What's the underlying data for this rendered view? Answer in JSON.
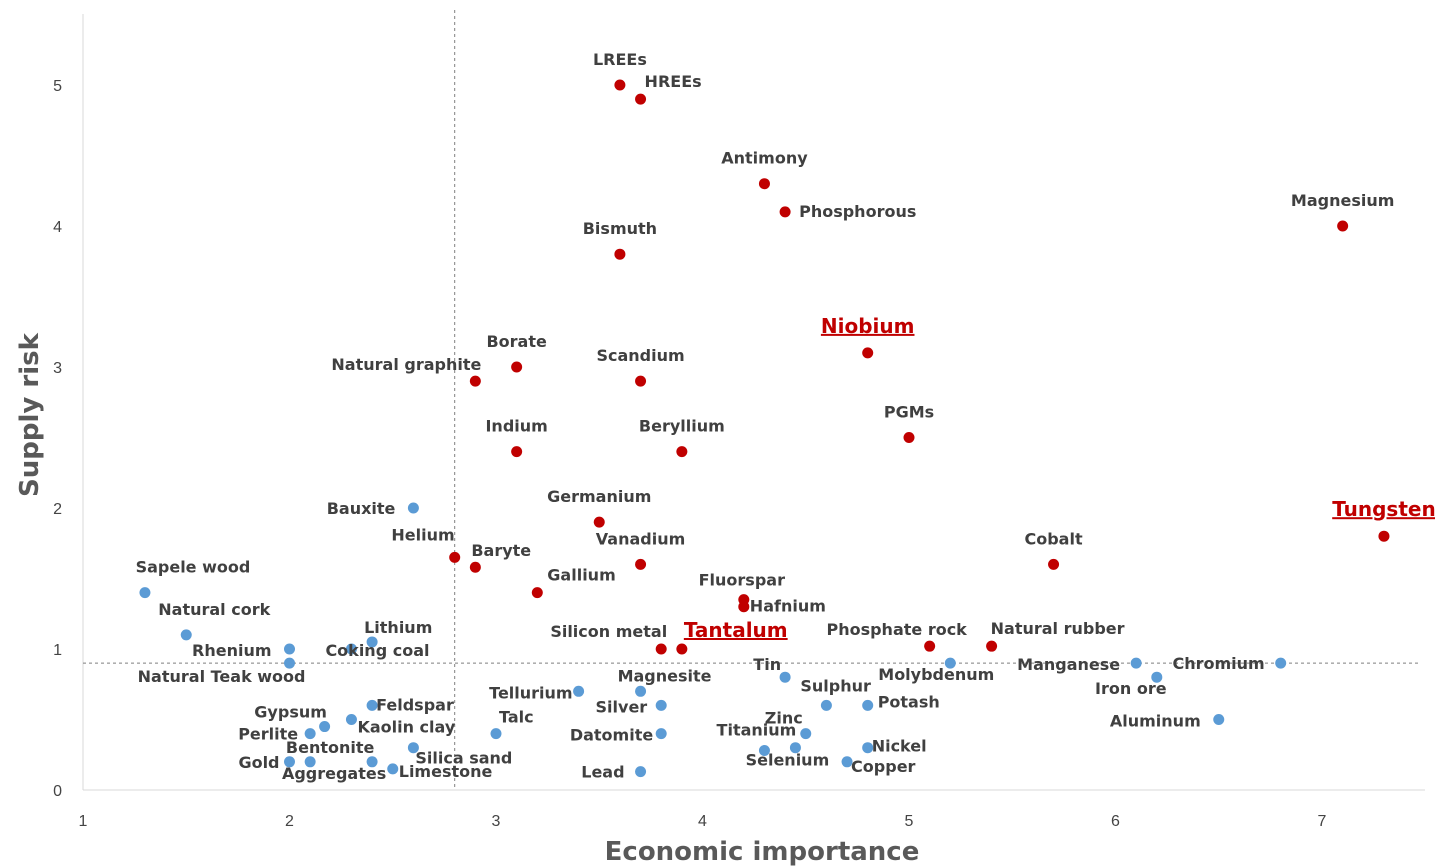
{
  "chart_data": {
    "type": "scatter",
    "xlabel": "Economic importance",
    "ylabel": "Supply risk",
    "xlim": [
      1,
      7.5
    ],
    "ylim": [
      0,
      5.5
    ],
    "xticks": [
      "1",
      "2",
      "3",
      "4",
      "5",
      "6",
      "7"
    ],
    "yticks": [
      "0",
      "1",
      "2",
      "3",
      "4",
      "5"
    ],
    "threshold_x": 2.8,
    "threshold_y": 0.9,
    "colors": {
      "critical": "#c00000",
      "non_critical": "#5b9bd5",
      "highlight_text": "#c00000"
    },
    "series": [
      {
        "group": "critical",
        "points": [
          {
            "name": "LREEs",
            "x": 3.6,
            "y": 5.0
          },
          {
            "name": "HREEs",
            "x": 3.7,
            "y": 4.9
          },
          {
            "name": "Antimony",
            "x": 4.3,
            "y": 4.3
          },
          {
            "name": "Phosphorous",
            "x": 4.4,
            "y": 4.1
          },
          {
            "name": "Magnesium",
            "x": 7.1,
            "y": 4.0
          },
          {
            "name": "Bismuth",
            "x": 3.6,
            "y": 3.8
          },
          {
            "name": "Niobium",
            "x": 4.8,
            "y": 3.1,
            "highlight": true
          },
          {
            "name": "Borate",
            "x": 3.1,
            "y": 3.0
          },
          {
            "name": "Natural graphite",
            "x": 2.9,
            "y": 2.9
          },
          {
            "name": "Scandium",
            "x": 3.7,
            "y": 2.9
          },
          {
            "name": "PGMs",
            "x": 5.0,
            "y": 2.5
          },
          {
            "name": "Indium",
            "x": 3.1,
            "y": 2.4
          },
          {
            "name": "Beryllium",
            "x": 3.9,
            "y": 2.4
          },
          {
            "name": "Germanium",
            "x": 3.5,
            "y": 1.9
          },
          {
            "name": "Tungsten",
            "x": 7.3,
            "y": 1.8,
            "highlight": true
          },
          {
            "name": "Helium",
            "x": 2.8,
            "y": 1.65
          },
          {
            "name": "Baryte",
            "x": 2.9,
            "y": 1.58
          },
          {
            "name": "Vanadium",
            "x": 3.7,
            "y": 1.6
          },
          {
            "name": "Cobalt",
            "x": 5.7,
            "y": 1.6
          },
          {
            "name": "Gallium",
            "x": 3.2,
            "y": 1.4
          },
          {
            "name": "Fluorspar",
            "x": 4.2,
            "y": 1.35
          },
          {
            "name": "Hafnium",
            "x": 4.2,
            "y": 1.3
          },
          {
            "name": "Silicon metal",
            "x": 3.8,
            "y": 1.0
          },
          {
            "name": "Tantalum",
            "x": 3.9,
            "y": 1.0,
            "highlight": true
          },
          {
            "name": "Phosphate rock",
            "x": 5.1,
            "y": 1.02
          },
          {
            "name": "Natural rubber",
            "x": 5.4,
            "y": 1.02
          }
        ]
      },
      {
        "group": "non_critical",
        "points": [
          {
            "name": "Bauxite",
            "x": 2.6,
            "y": 2.0
          },
          {
            "name": "Sapele wood",
            "x": 1.3,
            "y": 1.4
          },
          {
            "name": "Natural cork",
            "x": 1.5,
            "y": 1.1
          },
          {
            "name": "Lithium",
            "x": 2.4,
            "y": 1.05
          },
          {
            "name": "Rhenium",
            "x": 2.0,
            "y": 1.0
          },
          {
            "name": "Coking coal",
            "x": 2.3,
            "y": 1.0
          },
          {
            "name": "Natural Teak wood",
            "x": 2.0,
            "y": 0.9
          },
          {
            "name": "Molybdenum",
            "x": 5.2,
            "y": 0.9
          },
          {
            "name": "Manganese",
            "x": 6.1,
            "y": 0.9
          },
          {
            "name": "Chromium",
            "x": 6.8,
            "y": 0.9
          },
          {
            "name": "Iron ore",
            "x": 6.2,
            "y": 0.8
          },
          {
            "name": "Tin",
            "x": 4.4,
            "y": 0.8
          },
          {
            "name": "Tellurium",
            "x": 3.4,
            "y": 0.7
          },
          {
            "name": "Magnesite",
            "x": 3.7,
            "y": 0.7
          },
          {
            "name": "Feldspar",
            "x": 2.4,
            "y": 0.6
          },
          {
            "name": "Silver",
            "x": 3.8,
            "y": 0.6
          },
          {
            "name": "Sulphur",
            "x": 4.6,
            "y": 0.6
          },
          {
            "name": "Potash",
            "x": 4.8,
            "y": 0.6
          },
          {
            "name": "Aluminum",
            "x": 6.5,
            "y": 0.5
          },
          {
            "name": "Kaolin clay",
            "x": 2.3,
            "y": 0.5
          },
          {
            "name": "Gypsum",
            "x": 2.17,
            "y": 0.45
          },
          {
            "name": "Perlite",
            "x": 2.1,
            "y": 0.4
          },
          {
            "name": "Talc",
            "x": 3.0,
            "y": 0.4
          },
          {
            "name": "Datomite",
            "x": 3.8,
            "y": 0.4
          },
          {
            "name": "Zinc",
            "x": 4.5,
            "y": 0.4
          },
          {
            "name": "Bentonite",
            "x": 2.1,
            "y": 0.2
          },
          {
            "name": "Silica sand",
            "x": 2.6,
            "y": 0.3
          },
          {
            "name": "Titanium",
            "x": 4.3,
            "y": 0.28
          },
          {
            "name": "Selenium",
            "x": 4.45,
            "y": 0.3
          },
          {
            "name": "Nickel",
            "x": 4.8,
            "y": 0.3
          },
          {
            "name": "Copper",
            "x": 4.7,
            "y": 0.2
          },
          {
            "name": "Gold",
            "x": 2.0,
            "y": 0.2
          },
          {
            "name": "Aggregates",
            "x": 2.4,
            "y": 0.2
          },
          {
            "name": "Limestone",
            "x": 2.5,
            "y": 0.15
          },
          {
            "name": "Lead",
            "x": 3.7,
            "y": 0.13
          }
        ]
      }
    ]
  }
}
